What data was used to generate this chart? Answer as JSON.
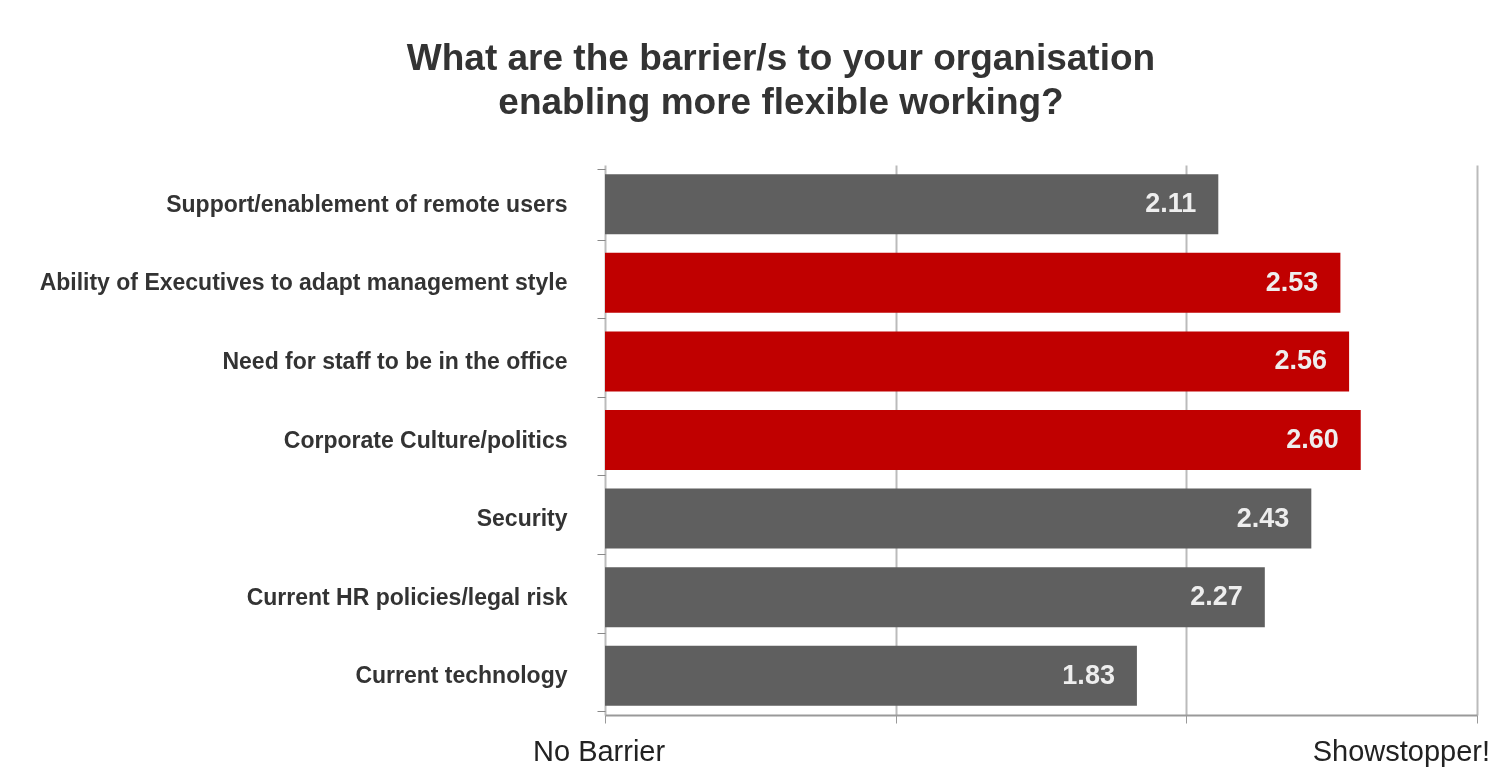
{
  "chart_data": {
    "type": "bar",
    "orientation": "horizontal",
    "title": "What are the barrier/s to your organisation enabling more flexible working?",
    "categories": [
      "Support/enablement of remote users",
      "Ability of Executives to adapt management style",
      "Need for staff to be in the office",
      "Corporate Culture/politics",
      "Security",
      "Current HR policies/legal risk",
      "Current technology"
    ],
    "values": [
      2.11,
      2.53,
      2.56,
      2.6,
      2.43,
      2.27,
      1.83
    ],
    "colors": [
      "#5f5f5f",
      "#c00000",
      "#c00000",
      "#c00000",
      "#5f5f5f",
      "#5f5f5f",
      "#5f5f5f"
    ],
    "value_labels": [
      "2.11",
      "2.53",
      "2.56",
      "2.60",
      "2.43",
      "2.27",
      "1.83"
    ],
    "xlim": [
      0,
      3
    ],
    "xticks": [
      {
        "value": 0,
        "label": null
      },
      {
        "value": 1,
        "label": null
      },
      {
        "value": 2,
        "label": null
      },
      {
        "value": 3,
        "label": null
      }
    ],
    "grid": "x",
    "annotations": [
      "No Barrier",
      "Showstopper!"
    ]
  }
}
